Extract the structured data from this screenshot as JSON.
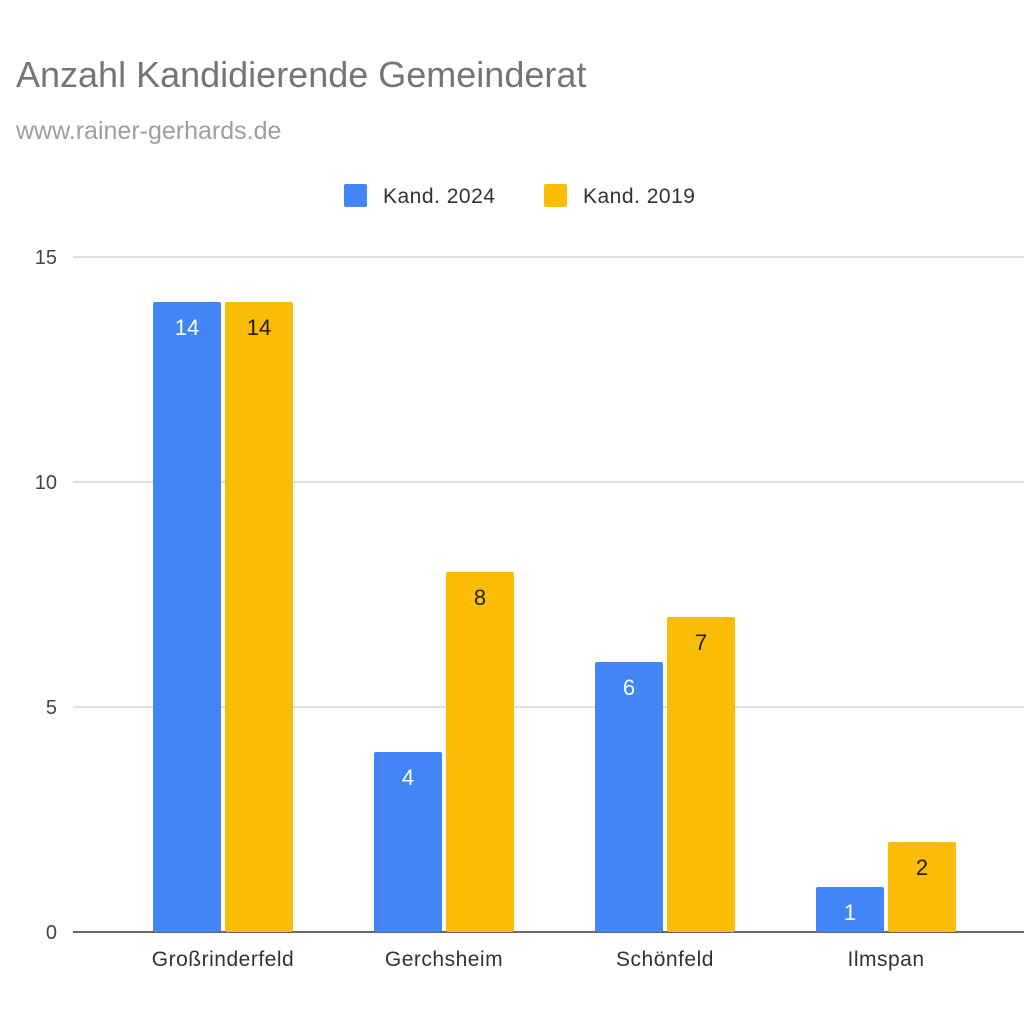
{
  "title": "Anzahl Kandidierende Gemeinderat",
  "subtitle": "www.rainer-gerhards.de",
  "chart_data": {
    "type": "bar",
    "title": "Anzahl Kandidierende Gemeinderat",
    "subtitle": "www.rainer-gerhards.de",
    "xlabel": "",
    "ylabel": "",
    "categories": [
      "Großrinderfeld",
      "Gerchsheim",
      "Schönfeld",
      "Ilmspan"
    ],
    "series": [
      {
        "name": "Kand. 2024",
        "values": [
          14,
          4,
          6,
          1
        ],
        "color": "#4285f4",
        "label_color": "#ffffff"
      },
      {
        "name": "Kand. 2019",
        "values": [
          14,
          8,
          7,
          2
        ],
        "color": "#fbbc04",
        "label_color": "#222222"
      }
    ],
    "ylim": [
      0,
      15
    ],
    "yticks": [
      0,
      5,
      10,
      15
    ],
    "grid": true,
    "legend_position": "top-center",
    "data_labels": true
  }
}
